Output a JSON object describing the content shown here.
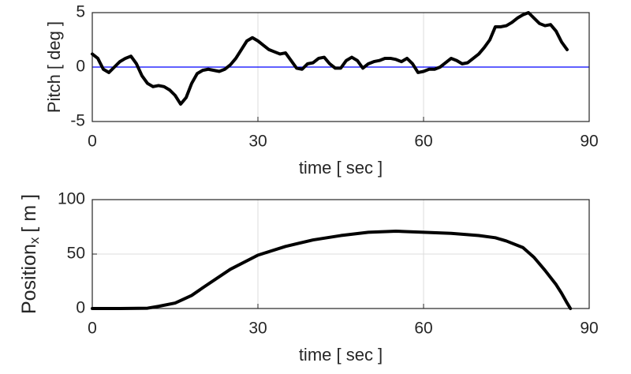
{
  "chart_data": [
    {
      "type": "line",
      "xlabel": "time [ sec ]",
      "ylabel": "Pitch [ deg ]",
      "xlim": [
        0,
        90
      ],
      "xticks": [
        0,
        30,
        60,
        90
      ],
      "ylim": [
        -5,
        5
      ],
      "yticks": [
        -5,
        0,
        5
      ],
      "grid": true,
      "hline": 0,
      "hline_color": "#0000ff",
      "x": [
        0,
        1,
        2,
        3,
        4,
        5,
        6,
        7,
        8,
        9,
        10,
        11,
        12,
        13,
        14,
        15,
        16,
        17,
        18,
        19,
        20,
        21,
        22,
        23,
        24,
        25,
        26,
        27,
        28,
        29,
        30,
        31,
        32,
        33,
        34,
        35,
        36,
        37,
        38,
        39,
        40,
        41,
        42,
        43,
        44,
        45,
        46,
        47,
        48,
        49,
        50,
        51,
        52,
        53,
        54,
        55,
        56,
        57,
        58,
        59,
        60,
        61,
        62,
        63,
        64,
        65,
        66,
        67,
        68,
        69,
        70,
        71,
        72,
        73,
        74,
        75,
        76,
        77,
        78,
        79,
        80,
        81,
        82,
        83,
        84,
        85,
        86
      ],
      "series": [
        {
          "color": "#000000",
          "values": [
            1.2,
            0.8,
            -0.2,
            -0.5,
            0,
            0.5,
            0.8,
            1.0,
            0.3,
            -0.8,
            -1.5,
            -1.8,
            -1.7,
            -1.8,
            -2.1,
            -2.6,
            -3.4,
            -2.8,
            -1.5,
            -0.6,
            -0.3,
            -0.2,
            -0.3,
            -0.4,
            -0.2,
            0.2,
            0.8,
            1.6,
            2.4,
            2.7,
            2.4,
            2.0,
            1.6,
            1.4,
            1.2,
            1.3,
            0.6,
            -0.1,
            -0.2,
            0.3,
            0.4,
            0.8,
            0.9,
            0.3,
            -0.1,
            -0.1,
            0.6,
            0.9,
            0.6,
            -0.1,
            0.3,
            0.5,
            0.6,
            0.8,
            0.8,
            0.7,
            0.5,
            0.8,
            0.3,
            -0.5,
            -0.4,
            -0.2,
            -0.2,
            0,
            0.4,
            0.8,
            0.6,
            0.3,
            0.4,
            0.8,
            1.2,
            1.8,
            2.5,
            3.7,
            3.7,
            3.8,
            4.1,
            4.5,
            4.8,
            5.0,
            4.5,
            4.0,
            3.8,
            3.9,
            3.3,
            2.3,
            1.6
          ]
        }
      ]
    },
    {
      "type": "line",
      "xlabel": "time [ sec ]",
      "ylabel": "Position",
      "ylabel_subscript": "x",
      "ylabel_suffix": "[ m ]",
      "xlim": [
        0,
        90
      ],
      "xticks": [
        0,
        30,
        60,
        90
      ],
      "ylim": [
        0,
        100
      ],
      "yticks": [
        0,
        50,
        100
      ],
      "grid": true,
      "x": [
        0,
        5,
        10,
        12,
        15,
        18,
        20,
        25,
        30,
        35,
        40,
        45,
        50,
        55,
        60,
        65,
        70,
        73,
        75,
        78,
        80,
        82,
        84,
        85,
        86,
        86.6
      ],
      "series": [
        {
          "color": "#000000",
          "values": [
            0,
            0,
            0.3,
            2,
            5,
            12,
            19,
            36,
            49,
            57,
            63,
            67,
            70,
            71,
            70,
            69,
            67,
            65,
            62,
            56,
            47,
            35,
            22,
            14,
            5,
            0
          ]
        }
      ]
    }
  ]
}
